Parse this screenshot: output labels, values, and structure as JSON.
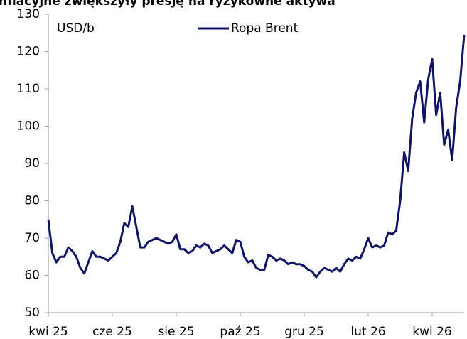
{
  "chart_data": {
    "type": "line",
    "title": "nflacyjne zwiększyły presję na ryzykowne aktywa",
    "ylabel": "USD/b",
    "categories": [
      "kwi 25",
      null,
      null,
      null,
      null,
      null,
      null,
      null,
      null,
      null,
      null,
      null,
      null,
      null,
      null,
      null,
      "cze 25",
      null,
      null,
      null,
      null,
      null,
      null,
      null,
      null,
      null,
      null,
      null,
      null,
      null,
      null,
      null,
      "sie 25",
      null,
      null,
      null,
      null,
      null,
      null,
      null,
      null,
      null,
      null,
      null,
      null,
      null,
      null,
      null,
      "paź 25",
      null,
      null,
      null,
      null,
      null,
      null,
      null,
      null,
      null,
      null,
      null,
      null,
      null,
      null,
      null,
      "gru 25",
      null,
      null,
      null,
      null,
      null,
      null,
      null,
      null,
      null,
      null,
      null,
      null,
      null,
      null,
      null,
      "lut 26",
      null,
      null,
      null,
      null,
      null,
      null,
      null,
      null,
      null,
      null,
      null,
      null,
      null,
      null,
      null,
      "kwi 26",
      null,
      null,
      null,
      null,
      null,
      null,
      null,
      null
    ],
    "series": [
      {
        "name": "Ropa Brent",
        "color": "#0f1464",
        "values": [
          75,
          66,
          63.5,
          65,
          65,
          67.5,
          66.5,
          65,
          62,
          60.5,
          63.5,
          66.5,
          65,
          65,
          64.5,
          64,
          65,
          66,
          69,
          74,
          73,
          78.5,
          73,
          67.5,
          67.5,
          69,
          69.5,
          70,
          69.5,
          69,
          68.5,
          69,
          71,
          67,
          67,
          66,
          66.5,
          68,
          67.5,
          68.5,
          68,
          66,
          66.5,
          67,
          68,
          67,
          66,
          69.5,
          69,
          65,
          63.5,
          64,
          62,
          61.5,
          61.5,
          65.5,
          65,
          64,
          64.5,
          64,
          63,
          63.5,
          63,
          63,
          62.5,
          61.5,
          61,
          59.5,
          61,
          62,
          61.5,
          61,
          62,
          61,
          63,
          64.5,
          64,
          65,
          64.5,
          67,
          70,
          67.5,
          68,
          67.5,
          68,
          71.5,
          71,
          72,
          80,
          93,
          88,
          102,
          109,
          112,
          101,
          112.5,
          118,
          103,
          109,
          95,
          99,
          91,
          105,
          112,
          124.5
        ]
      }
    ],
    "ylim": [
      50,
      130
    ],
    "yticks": [
      50,
      60,
      70,
      80,
      90,
      100,
      110,
      120,
      130
    ]
  }
}
